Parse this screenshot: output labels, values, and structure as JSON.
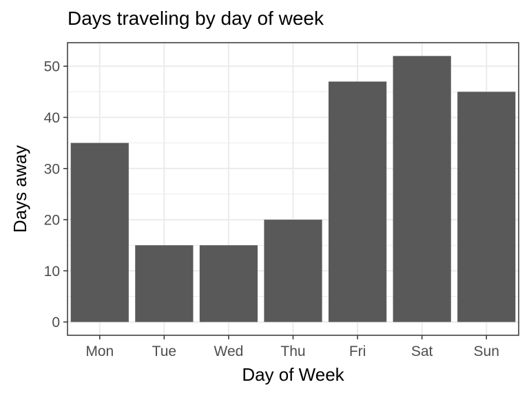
{
  "chart_data": {
    "type": "bar",
    "title": "Days traveling by day of week",
    "xlabel": "Day of Week",
    "ylabel": "Days away",
    "categories": [
      "Mon",
      "Tue",
      "Wed",
      "Thu",
      "Fri",
      "Sat",
      "Sun"
    ],
    "values": [
      35,
      15,
      15,
      20,
      47,
      52,
      45
    ],
    "ylim": [
      -2.6,
      54.6
    ],
    "yticks": [
      0,
      10,
      20,
      30,
      40,
      50
    ],
    "grid": true,
    "theme": "bw",
    "bar_color": "#595959",
    "grid_color": "#ebebeb",
    "border_color": "#333333"
  }
}
